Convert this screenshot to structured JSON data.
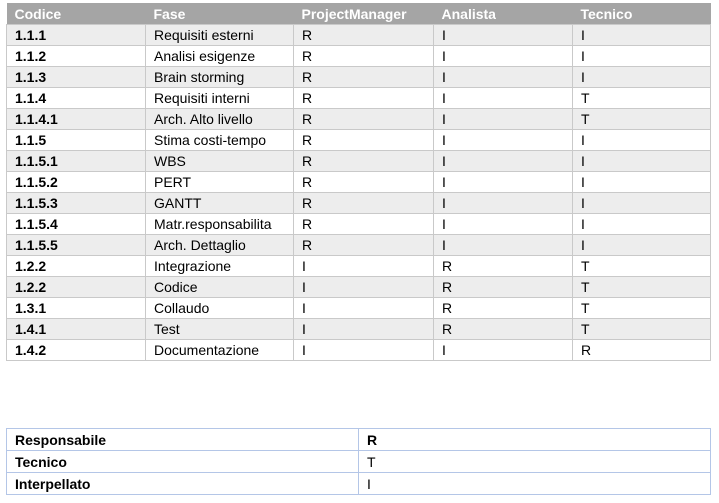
{
  "raci": {
    "headers": [
      "Codice",
      "Fase",
      "ProjectManager",
      "Analista",
      "Tecnico"
    ],
    "rows": [
      {
        "codice": "1.1.1",
        "fase": "Requisiti esterni",
        "pm": "R",
        "analista": "I",
        "tecnico": "I"
      },
      {
        "codice": "1.1.2",
        "fase": "Analisi esigenze",
        "pm": "R",
        "analista": "I",
        "tecnico": "I"
      },
      {
        "codice": "1.1.3",
        "fase": "Brain storming",
        "pm": "R",
        "analista": "I",
        "tecnico": "I"
      },
      {
        "codice": "1.1.4",
        "fase": "Requisiti interni",
        "pm": "R",
        "analista": "I",
        "tecnico": "T"
      },
      {
        "codice": "1.1.4.1",
        "fase": "Arch. Alto livello",
        "pm": "R",
        "analista": "I",
        "tecnico": "T"
      },
      {
        "codice": "1.1.5",
        "fase": "Stima costi-tempo",
        "pm": "R",
        "analista": "I",
        "tecnico": "I"
      },
      {
        "codice": "1.1.5.1",
        "fase": "WBS",
        "pm": "R",
        "analista": "I",
        "tecnico": "I"
      },
      {
        "codice": "1.1.5.2",
        "fase": "PERT",
        "pm": "R",
        "analista": "I",
        "tecnico": "I"
      },
      {
        "codice": "1.1.5.3",
        "fase": "GANTT",
        "pm": "R",
        "analista": "I",
        "tecnico": "I"
      },
      {
        "codice": "1.1.5.4",
        "fase": "Matr.responsabilita",
        "pm": "R",
        "analista": "I",
        "tecnico": "I"
      },
      {
        "codice": "1.1.5.5",
        "fase": "Arch. Dettaglio",
        "pm": "R",
        "analista": "I",
        "tecnico": "I"
      },
      {
        "codice": "1.2.2",
        "fase": "Integrazione",
        "pm": "I",
        "analista": "R",
        "tecnico": "T"
      },
      {
        "codice": "1.2.2",
        "fase": "Codice",
        "pm": "I",
        "analista": "R",
        "tecnico": "T"
      },
      {
        "codice": "1.3.1",
        "fase": "Collaudo",
        "pm": "I",
        "analista": "R",
        "tecnico": "T"
      },
      {
        "codice": "1.4.1",
        "fase": "Test",
        "pm": "I",
        "analista": "R",
        "tecnico": "T"
      },
      {
        "codice": "1.4.2",
        "fase": "Documentazione",
        "pm": "I",
        "analista": "I",
        "tecnico": "R"
      }
    ]
  },
  "legend": {
    "rows": [
      {
        "label": "Responsabile",
        "value": "R"
      },
      {
        "label": "Tecnico",
        "value": "T"
      },
      {
        "label": "Interpellato",
        "value": "I"
      }
    ]
  },
  "colors": {
    "header_bg": "#a5a5a5",
    "band_bg": "#ededed",
    "legend_border": "#b4c6e7"
  }
}
